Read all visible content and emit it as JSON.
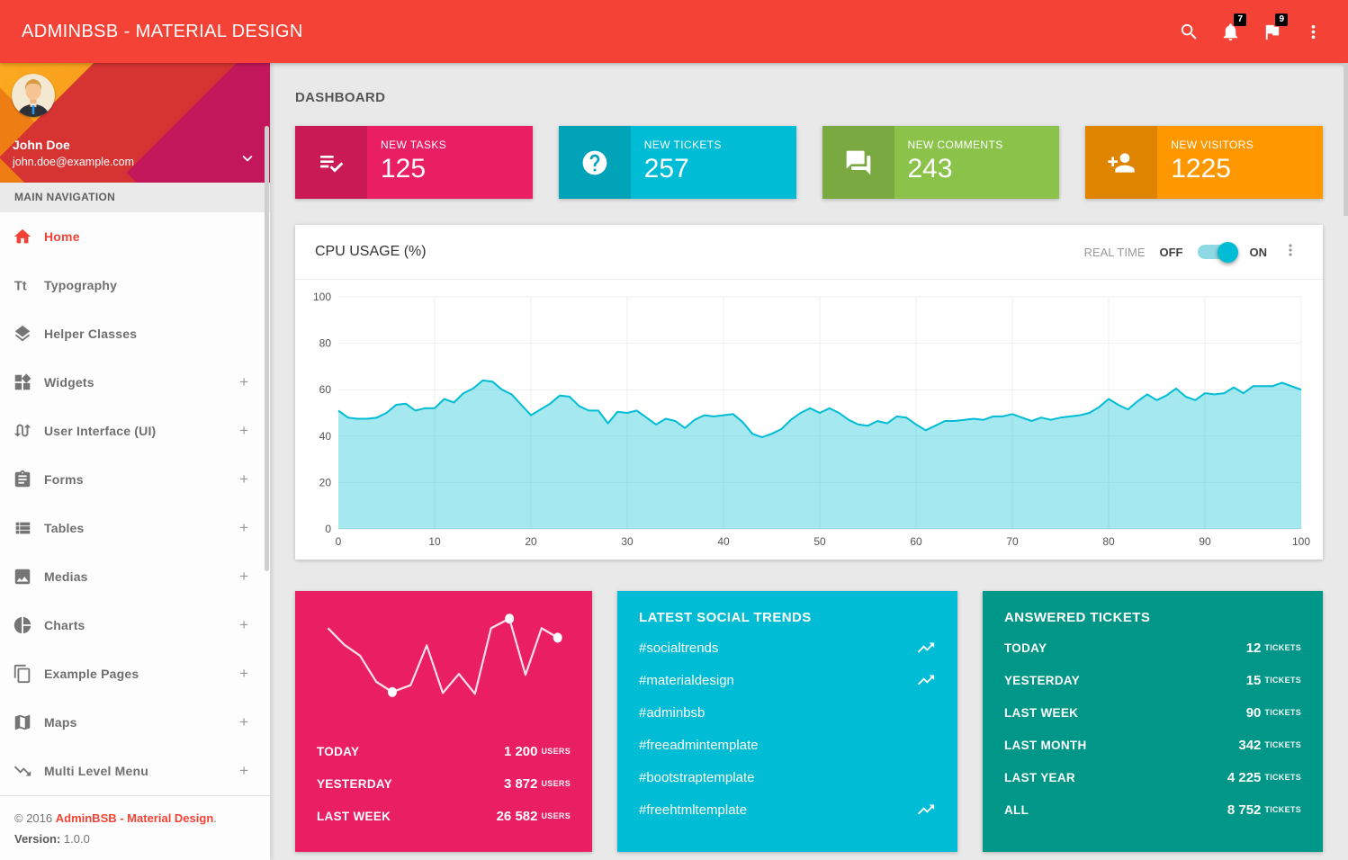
{
  "header": {
    "title": "ADMINBSB - MATERIAL DESIGN",
    "notifications_count": "7",
    "flags_count": "9"
  },
  "sidebar": {
    "user": {
      "name": "John Doe",
      "email": "john.doe@example.com"
    },
    "nav_header": "MAIN NAVIGATION",
    "expand_glyph": "+",
    "items": [
      {
        "label": "Home",
        "icon": "home",
        "active": true,
        "expandable": false
      },
      {
        "label": "Typography",
        "icon": "typography",
        "active": false,
        "expandable": false
      },
      {
        "label": "Helper Classes",
        "icon": "layers",
        "active": false,
        "expandable": false
      },
      {
        "label": "Widgets",
        "icon": "widgets",
        "active": false,
        "expandable": true
      },
      {
        "label": "User Interface (UI)",
        "icon": "swap",
        "active": false,
        "expandable": true
      },
      {
        "label": "Forms",
        "icon": "assignment",
        "active": false,
        "expandable": true
      },
      {
        "label": "Tables",
        "icon": "table",
        "active": false,
        "expandable": true
      },
      {
        "label": "Medias",
        "icon": "image",
        "active": false,
        "expandable": true
      },
      {
        "label": "Charts",
        "icon": "pie-chart",
        "active": false,
        "expandable": true
      },
      {
        "label": "Example Pages",
        "icon": "pages",
        "active": false,
        "expandable": true
      },
      {
        "label": "Maps",
        "icon": "map",
        "active": false,
        "expandable": true
      },
      {
        "label": "Multi Level Menu",
        "icon": "trending-down",
        "active": false,
        "expandable": true
      }
    ],
    "footer": {
      "copyright_prefix": "© 2016 ",
      "copyright_link": "AdminBSB - Material Design",
      "copyright_suffix": ".",
      "version_label": "Version:",
      "version_value": " 1.0.0"
    }
  },
  "main": {
    "page_title": "DASHBOARD",
    "info_boxes": [
      {
        "label": "NEW TASKS",
        "value": "125",
        "color": "#E91E63",
        "icon": "playlist-check"
      },
      {
        "label": "NEW TICKETS",
        "value": "257",
        "color": "#00BCD4",
        "icon": "help"
      },
      {
        "label": "NEW COMMENTS",
        "value": "243",
        "color": "#8BC34A",
        "icon": "forum"
      },
      {
        "label": "NEW VISITORS",
        "value": "1225",
        "color": "#FF9800",
        "icon": "person-add"
      }
    ],
    "cpu_card": {
      "title": "CPU USAGE (%)",
      "realtime_label": "REAL TIME",
      "off_label": "OFF",
      "on_label": "ON",
      "toggle_state": "on"
    },
    "visitors_card": {
      "color": "#E91E63",
      "rows": [
        {
          "label": "TODAY",
          "value": "1 200",
          "unit": "USERS"
        },
        {
          "label": "YESTERDAY",
          "value": "3 872",
          "unit": "USERS"
        },
        {
          "label": "LAST WEEK",
          "value": "26 582",
          "unit": "USERS"
        }
      ]
    },
    "social_card": {
      "color": "#00BCD4",
      "title": "LATEST SOCIAL TRENDS",
      "items": [
        {
          "tag": "#socialtrends",
          "trending": true
        },
        {
          "tag": "#materialdesign",
          "trending": true
        },
        {
          "tag": "#adminbsb",
          "trending": false
        },
        {
          "tag": "#freeadmintemplate",
          "trending": false
        },
        {
          "tag": "#bootstraptemplate",
          "trending": false
        },
        {
          "tag": "#freehtmltemplate",
          "trending": true
        }
      ]
    },
    "tickets_card": {
      "color": "#009688",
      "title": "ANSWERED TICKETS",
      "rows": [
        {
          "label": "TODAY",
          "value": "12",
          "unit": "TICKETS"
        },
        {
          "label": "YESTERDAY",
          "value": "15",
          "unit": "TICKETS"
        },
        {
          "label": "LAST WEEK",
          "value": "90",
          "unit": "TICKETS"
        },
        {
          "label": "LAST MONTH",
          "value": "342",
          "unit": "TICKETS"
        },
        {
          "label": "LAST YEAR",
          "value": "4 225",
          "unit": "TICKETS"
        },
        {
          "label": "ALL",
          "value": "8 752",
          "unit": "TICKETS"
        }
      ]
    }
  },
  "chart_data": [
    {
      "id": "cpu-usage",
      "type": "area",
      "title": "CPU USAGE (%)",
      "xlabel": "",
      "ylabel": "",
      "xlim": [
        0,
        100
      ],
      "ylim": [
        0,
        100
      ],
      "x_ticks": [
        0,
        10,
        20,
        30,
        40,
        50,
        60,
        70,
        80,
        90,
        100
      ],
      "y_ticks": [
        0,
        20,
        40,
        60,
        80,
        100
      ],
      "grid": true,
      "legend": "none",
      "line_color": "#00BCD4",
      "fill_color": "rgba(0,188,212,0.35)",
      "x_start": 0,
      "x_step": 1,
      "values": [
        51,
        48,
        47.5,
        47.5,
        48,
        50,
        53.5,
        54,
        51,
        52,
        52,
        56,
        54.5,
        58.5,
        60.5,
        64,
        63.5,
        60,
        58,
        53.5,
        49,
        51.5,
        54,
        57.5,
        57,
        53,
        51,
        51,
        45.5,
        50.5,
        50,
        51,
        48,
        45,
        47.5,
        46.5,
        43.5,
        47,
        49,
        48.5,
        49,
        49.5,
        46,
        41,
        39.5,
        41,
        43,
        47,
        50,
        52,
        50,
        52,
        50,
        47,
        45,
        44.5,
        46.5,
        45.5,
        48.5,
        48,
        45,
        42.5,
        44.5,
        46.5,
        46.5,
        47,
        47.5,
        47,
        48.5,
        48.5,
        49.5,
        48,
        46.5,
        48,
        47,
        48,
        48.5,
        49,
        50,
        52.5,
        56,
        53.5,
        51.5,
        55,
        58,
        55.5,
        57.5,
        60.5,
        57,
        55.5,
        58.5,
        58,
        58.5,
        61,
        58.5,
        61.5,
        61.5,
        61.5,
        63,
        61.5,
        60
      ]
    },
    {
      "id": "visitors-spark",
      "type": "line",
      "title": "Visitors sparkline",
      "axes": "hidden",
      "xlim": [
        0,
        100
      ],
      "ylim": [
        0,
        100
      ],
      "line_color": "#FFFFFF",
      "x": [
        0,
        7,
        14,
        21,
        28,
        36,
        43,
        50,
        57,
        64,
        71,
        79,
        86,
        93,
        100
      ],
      "values": [
        82,
        63,
        50,
        20,
        8,
        16,
        62,
        7,
        29,
        6,
        82,
        93,
        28,
        82,
        71
      ],
      "dot_indices": [
        4,
        11,
        14
      ]
    }
  ]
}
